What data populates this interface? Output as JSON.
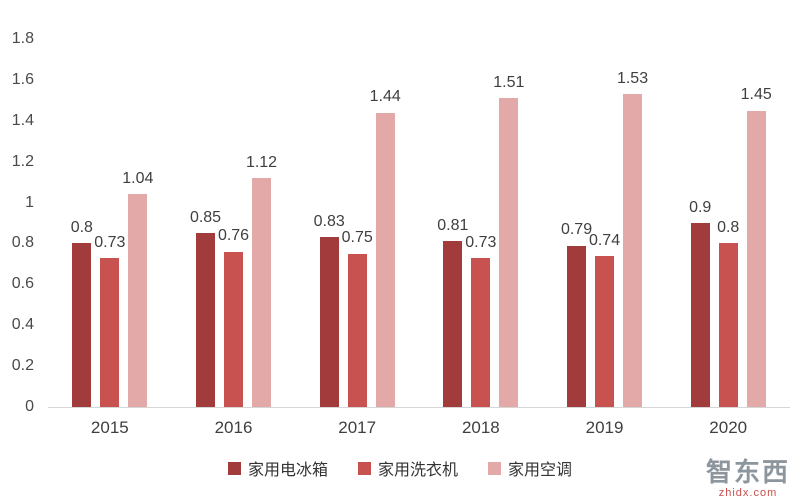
{
  "chart_data": {
    "type": "bar",
    "title": "",
    "xlabel": "",
    "ylabel": "",
    "categories": [
      "2015",
      "2016",
      "2017",
      "2018",
      "2019",
      "2020"
    ],
    "series": [
      {
        "name": "家用电冰箱",
        "color": "#A23C3C",
        "values": [
          0.8,
          0.85,
          0.83,
          0.81,
          0.79,
          0.9
        ]
      },
      {
        "name": "家用洗衣机",
        "color": "#C75250",
        "values": [
          0.73,
          0.76,
          0.75,
          0.73,
          0.74,
          0.8
        ]
      },
      {
        "name": "家用空调",
        "color": "#E3A9A8",
        "values": [
          1.04,
          1.12,
          1.44,
          1.51,
          1.53,
          1.45
        ]
      }
    ],
    "y_ticks": [
      "1.8",
      "1.6",
      "1.4",
      "1.2",
      "1",
      "0.8",
      "0.6",
      "0.4",
      "0.2",
      "0"
    ],
    "ylim": [
      0,
      1.8
    ],
    "grid": false,
    "legend_position": "bottom"
  },
  "watermark": {
    "logo": "智东西",
    "url": "zhidx.com"
  }
}
